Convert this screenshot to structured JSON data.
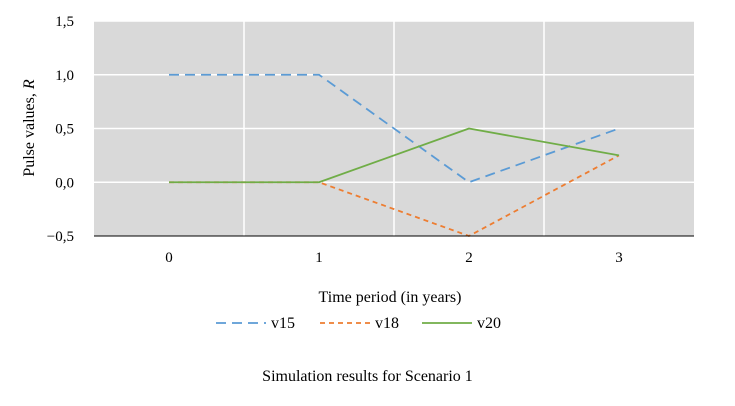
{
  "chart_data": {
    "type": "line",
    "title": "",
    "xlabel": "Time period (in years)",
    "ylabel_text": "Pulse values, ",
    "ylabel_symbol": "R",
    "x": [
      0,
      1,
      2,
      3
    ],
    "x_tick_labels": [
      "0",
      "1",
      "2",
      "3"
    ],
    "ylim": [
      -0.5,
      1.5
    ],
    "y_ticks": [
      -0.5,
      0.0,
      0.5,
      1.0,
      1.5
    ],
    "y_tick_labels": [
      "−0,5",
      "0,0",
      "0,5",
      "1,0",
      "1,5"
    ],
    "grid": true,
    "legend_position": "bottom",
    "series": [
      {
        "name": "v15",
        "values": [
          1.0,
          1.0,
          0.0,
          0.5
        ],
        "color": "#5B9BD5",
        "style": "long-dash"
      },
      {
        "name": "v18",
        "values": [
          0.0,
          0.0,
          -0.5,
          0.25
        ],
        "color": "#ED7D31",
        "style": "short-dash"
      },
      {
        "name": "v20",
        "values": [
          0.0,
          0.0,
          0.5,
          0.25
        ],
        "color": "#70AD47",
        "style": "solid"
      }
    ]
  },
  "caption": "Simulation results for Scenario 1"
}
